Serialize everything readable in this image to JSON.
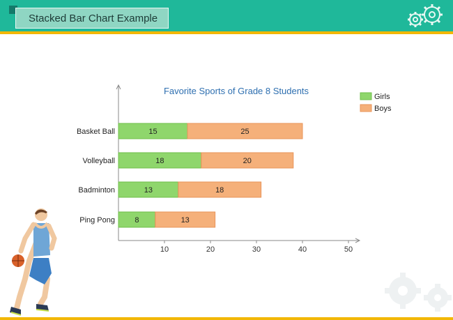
{
  "header": {
    "title": "Stacked Bar Chart Example",
    "colors": {
      "band": "#1fb89a",
      "rule": "#f2b705",
      "title_box": "#8fd6c3"
    }
  },
  "decorations": {
    "top_icon": "gears-icon",
    "bottom_icon": "gears-icon",
    "illustration": "basketball-player-icon"
  },
  "chart_data": {
    "type": "bar",
    "orientation": "horizontal",
    "stacked": true,
    "title": "Favorite Sports of Grade 8 Students",
    "categories": [
      "Basket Ball",
      "Volleyball",
      "Badminton",
      "Ping Pong"
    ],
    "series": [
      {
        "name": "Girls",
        "values": [
          15,
          18,
          13,
          8
        ],
        "color": "#8fd66c"
      },
      {
        "name": "Boys",
        "values": [
          25,
          20,
          18,
          13
        ],
        "color": "#f5b07a"
      }
    ],
    "xlim": [
      0,
      50
    ],
    "xticks": [
      10,
      20,
      30,
      40,
      50
    ],
    "xlabel": "",
    "ylabel": "",
    "grid": false,
    "data_labels": true,
    "legend_position": "top-right"
  }
}
